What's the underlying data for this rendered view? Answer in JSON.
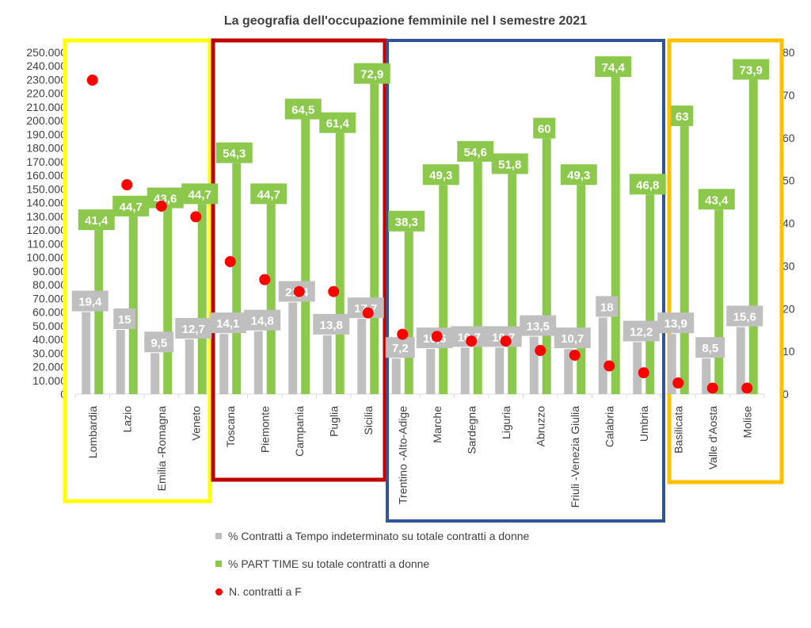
{
  "chart_data": {
    "type": "bar",
    "title": "La geografia dell'occupazione femminile nel I semestre 2021",
    "categories": [
      "Lombardia",
      "Lazio",
      "Emilia -Romagna",
      "Veneto",
      "Toscana",
      "Piemonte",
      "Campania",
      "Puglia",
      "Sicilia",
      "Trentino -Alto-Adige",
      "Marche",
      "Sardegna",
      "Liguria",
      "Abruzzo",
      "Friuli -Venezia Giulia",
      "Calabria",
      "Umbria",
      "Basilicata",
      "Valle d'Aosta",
      "Molise"
    ],
    "left_axis": {
      "ylim": [
        0,
        250000
      ],
      "tick_step": 10000,
      "tick_labels": [
        "0",
        "10.000",
        "20.000",
        "30.000",
        "40.000",
        "50.000",
        "60.000",
        "70.000",
        "80.000",
        "90.000",
        "100.000",
        "110.000",
        "120.000",
        "130.000",
        "140.000",
        "150.000",
        "160.000",
        "170.000",
        "180.000",
        "190.000",
        "200.000",
        "210.000",
        "220.000",
        "230.000",
        "240.000",
        "250.000"
      ]
    },
    "right_axis": {
      "ylim": [
        0,
        80
      ],
      "tick_step": 10,
      "tick_labels": [
        "0",
        "10",
        "20",
        "30",
        "40",
        "50",
        "60",
        "70",
        "80"
      ]
    },
    "series": [
      {
        "name": "% Contratti a Tempo indeterminato su totale contratti a donne",
        "type": "bar",
        "axis": "left",
        "color": "#bfbfbf",
        "values": [
          60000,
          47000,
          30000,
          40000,
          44000,
          46000,
          67000,
          43000,
          55000,
          26000,
          33000,
          34000,
          34000,
          42000,
          33000,
          56000,
          38000,
          44000,
          26000,
          49000
        ],
        "labels": [
          "19,4",
          "15",
          "9,5",
          "12,7",
          "14,1",
          "14,8",
          "21,4",
          "13,8",
          "17,7",
          "7,2",
          "10,6",
          "10,7",
          "10,7",
          "13,5",
          "10,7",
          "18",
          "12,2",
          "13,9",
          "8,5",
          "15,6"
        ]
      },
      {
        "name": "% PART TIME su totale contratti a donne",
        "type": "bar",
        "axis": "left",
        "color": "#8cc84b",
        "values": [
          120000,
          130000,
          136000,
          139000,
          169000,
          139000,
          201000,
          191000,
          227000,
          119000,
          153000,
          170000,
          161000,
          187000,
          153000,
          232000,
          146000,
          196000,
          135000,
          230000
        ],
        "labels": [
          "41,4",
          "44,7",
          "43,6",
          "44,7",
          "54,3",
          "44,7",
          "64,5",
          "61,4",
          "72,9",
          "38,3",
          "49,3",
          "54,6",
          "51,8",
          "60",
          "49,3",
          "74,4",
          "46,8",
          "63",
          "43,4",
          "73,9"
        ]
      },
      {
        "name": "N. contratti a F",
        "type": "scatter",
        "axis": "right",
        "color": "#ff0000",
        "values": [
          73.5,
          49,
          44,
          41.5,
          31,
          26.8,
          24,
          24,
          19,
          14,
          13.5,
          12.4,
          12.4,
          10.2,
          9.1,
          6.6,
          5,
          2.6,
          1.4,
          1.4
        ]
      }
    ],
    "groups": [
      {
        "color": "#ffff00",
        "members": [
          "Lombardia",
          "Lazio",
          "Emilia -Romagna",
          "Veneto"
        ]
      },
      {
        "color": "#c00000",
        "members": [
          "Toscana",
          "Piemonte",
          "Campania",
          "Puglia",
          "Sicilia"
        ]
      },
      {
        "color": "#2f5597",
        "members": [
          "Trentino -Alto-Adige",
          "Marche",
          "Sardegna",
          "Liguria",
          "Abruzzo",
          "Friuli -Venezia Giulia",
          "Calabria",
          "Umbria"
        ]
      },
      {
        "color": "#ffc000",
        "members": [
          "Basilicata",
          "Valle d'Aosta",
          "Molise"
        ]
      }
    ],
    "grid": false,
    "legend_position": "bottom"
  }
}
